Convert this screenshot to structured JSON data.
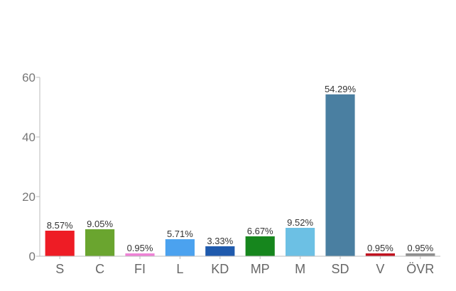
{
  "chart_data": {
    "type": "bar",
    "title": "",
    "xlabel": "",
    "ylabel": "",
    "ylim": [
      0,
      60
    ],
    "yticks": [
      0,
      20,
      40,
      60
    ],
    "grid": false,
    "categories": [
      "S",
      "C",
      "FI",
      "L",
      "KD",
      "MP",
      "M",
      "SD",
      "V",
      "ÖVR"
    ],
    "values": [
      8.57,
      9.05,
      0.95,
      5.71,
      3.33,
      6.67,
      9.52,
      54.29,
      0.95,
      0.95
    ],
    "value_labels": [
      "8.57%",
      "9.05%",
      "0.95%",
      "5.71%",
      "3.33%",
      "6.67%",
      "9.52%",
      "54.29%",
      "0.95%",
      "0.95%"
    ],
    "colors": [
      "#ee1c25",
      "#6aa52f",
      "#ee82d6",
      "#4ba2ef",
      "#1f5aad",
      "#16861d",
      "#6cc0e4",
      "#4a7fa1",
      "#c1121f",
      "#8e8e8e"
    ]
  }
}
